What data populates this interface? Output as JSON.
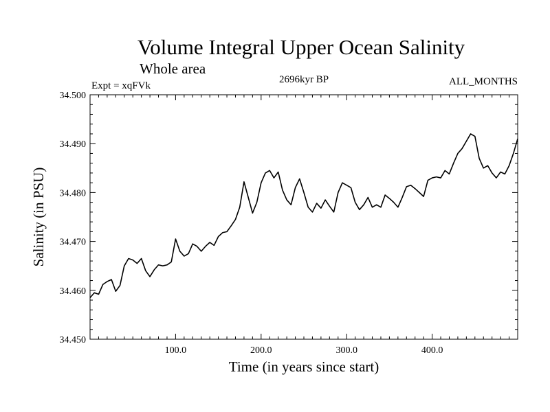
{
  "chart_data": {
    "type": "line",
    "title": "Volume Integral Upper Ocean Salinity",
    "subtitle": "Whole area",
    "experiment_label": "Expt = xqFVk",
    "period_label": "2696kyr BP",
    "months_label": "ALL_MONTHS",
    "xlabel": "Time (in years since start)",
    "ylabel": "Salinity (in PSU)",
    "xlim": [
      0,
      500
    ],
    "ylim": [
      34.45,
      34.5
    ],
    "x_ticks": [
      100,
      200,
      300,
      400
    ],
    "x_tick_labels": [
      "100.0",
      "200.0",
      "300.0",
      "400.0"
    ],
    "y_ticks": [
      34.45,
      34.46,
      34.47,
      34.48,
      34.49,
      34.5
    ],
    "y_tick_labels": [
      "34.450",
      "34.460",
      "34.470",
      "34.480",
      "34.490",
      "34.500"
    ],
    "grid": false,
    "series": [
      {
        "name": "salinity",
        "x": [
          0,
          5,
          10,
          15,
          20,
          25,
          30,
          35,
          40,
          45,
          50,
          55,
          60,
          65,
          70,
          75,
          80,
          85,
          90,
          95,
          100,
          105,
          110,
          115,
          120,
          125,
          130,
          135,
          140,
          145,
          150,
          155,
          160,
          165,
          170,
          175,
          180,
          185,
          190,
          195,
          200,
          205,
          210,
          215,
          220,
          225,
          230,
          235,
          240,
          245,
          250,
          255,
          260,
          265,
          270,
          275,
          280,
          285,
          290,
          295,
          300,
          305,
          310,
          315,
          320,
          325,
          330,
          335,
          340,
          345,
          350,
          355,
          360,
          365,
          370,
          375,
          380,
          385,
          390,
          395,
          400,
          405,
          410,
          415,
          420,
          425,
          430,
          435,
          440,
          445,
          450,
          455,
          460,
          465,
          470,
          475,
          480,
          485,
          490,
          495,
          500
        ],
        "values": [
          34.4585,
          34.4595,
          34.4592,
          34.4612,
          34.4618,
          34.4622,
          34.4598,
          34.461,
          34.465,
          34.4665,
          34.4662,
          34.4655,
          34.4665,
          34.464,
          34.4628,
          34.4642,
          34.4652,
          34.465,
          34.4652,
          34.4658,
          34.4705,
          34.468,
          34.467,
          34.4675,
          34.4695,
          34.469,
          34.468,
          34.469,
          34.4698,
          34.4692,
          34.471,
          34.4718,
          34.472,
          34.4732,
          34.4745,
          34.477,
          34.4822,
          34.479,
          34.4758,
          34.478,
          34.482,
          34.484,
          34.4845,
          34.483,
          34.4842,
          34.4805,
          34.4785,
          34.4775,
          34.481,
          34.4828,
          34.48,
          34.477,
          34.476,
          34.4778,
          34.4768,
          34.4785,
          34.4772,
          34.476,
          34.48,
          34.482,
          34.4815,
          34.481,
          34.478,
          34.4765,
          34.4775,
          34.479,
          34.477,
          34.4775,
          34.477,
          34.4795,
          34.4788,
          34.478,
          34.477,
          34.479,
          34.4812,
          34.4815,
          34.4808,
          34.48,
          34.4792,
          34.4825,
          34.483,
          34.4832,
          34.483,
          34.4845,
          34.4838,
          34.486,
          34.488,
          34.489,
          34.4905,
          34.492,
          34.4915,
          34.487,
          34.485,
          34.4855,
          34.484,
          34.483,
          34.4842,
          34.4838,
          34.4855,
          34.488,
          34.491
        ]
      }
    ]
  }
}
